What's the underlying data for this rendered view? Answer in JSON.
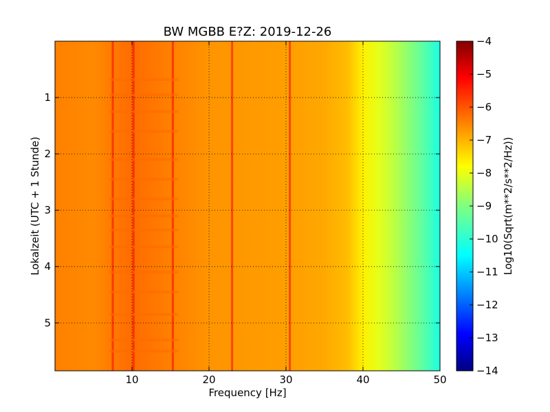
{
  "chart_data": {
    "type": "heatmap",
    "title": "BW MGBB E?Z: 2019-12-26",
    "xlabel": "Frequency [Hz]",
    "ylabel": "Lokalzeit (UTC + 1 Stunde)",
    "xlim": [
      0,
      50
    ],
    "ylim": [
      5.85,
      0
    ],
    "x_ticks": [
      10,
      20,
      30,
      40,
      50
    ],
    "y_ticks": [
      1,
      2,
      3,
      4,
      5
    ],
    "grid": true,
    "colorbar": {
      "label": "Log10(Sqrt(m**2/s**2/Hz))",
      "range": [
        -14,
        -4
      ],
      "ticks": [
        -4,
        -5,
        -6,
        -7,
        -8,
        -9,
        -10,
        -11,
        -12,
        -13,
        -14
      ],
      "colormap": "jet"
    },
    "spectral_profile": {
      "frequency_hz": [
        0,
        5,
        10,
        15,
        20,
        25,
        30,
        35,
        38,
        40,
        42,
        44,
        46,
        48,
        50
      ],
      "level": [
        -6.5,
        -6.6,
        -6.3,
        -6.5,
        -6.7,
        -6.75,
        -6.8,
        -6.9,
        -7.1,
        -7.6,
        -8.0,
        -8.4,
        -8.9,
        -9.4,
        -10.0
      ]
    },
    "narrowband_lines_hz": [
      7.5,
      10.2,
      15.3,
      23.0,
      30.5
    ],
    "broadband_bands_hours": [
      0.68,
      0.95,
      1.25,
      1.6,
      2.1,
      2.45,
      2.8,
      3.1,
      3.35,
      3.65,
      4.1,
      4.45,
      4.85,
      5.3,
      5.5
    ]
  }
}
